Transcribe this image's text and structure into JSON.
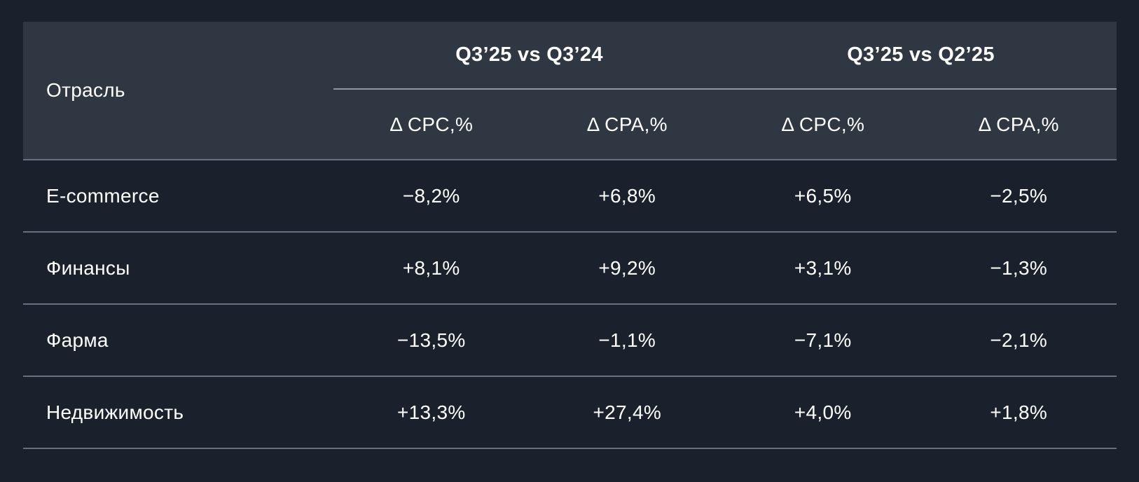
{
  "table": {
    "industry_header": "Отрасль",
    "groups": [
      {
        "label": "Q3’25 vs Q3’24"
      },
      {
        "label": "Q3’25 vs Q2’25"
      }
    ],
    "metric_headers": [
      "Δ CPC,%",
      "Δ CPA,%",
      "Δ CPC,%",
      "Δ CPA,%"
    ],
    "rows": [
      {
        "industry": "E-commerce",
        "values": [
          "−8,2%",
          "+6,8%",
          "+6,5%",
          "−2,5%"
        ]
      },
      {
        "industry": "Финансы",
        "values": [
          "+8,1%",
          "+9,2%",
          "+3,1%",
          "−1,3%"
        ]
      },
      {
        "industry": "Фарма",
        "values": [
          "−13,5%",
          "−1,1%",
          "−7,1%",
          "−2,1%"
        ]
      },
      {
        "industry": "Недвижимость",
        "values": [
          "+13,3%",
          "+27,4%",
          "+4,0%",
          "+1,8%"
        ]
      }
    ],
    "colors": {
      "page_bg": "#1a212c",
      "header_bg": "#2f3743",
      "row_separator": "#67707c",
      "header_underline": "#8f969f",
      "text": "#ffffff"
    }
  },
  "chart_data": {
    "type": "table",
    "title": "",
    "column_groups": [
      "Q3’25 vs Q3’24",
      "Q3’25 vs Q2’25"
    ],
    "columns": [
      "Отрасль",
      "Δ CPC,% (Q3’25 vs Q3’24)",
      "Δ CPA,% (Q3’25 vs Q3’24)",
      "Δ CPC,% (Q3’25 vs Q2’25)",
      "Δ CPA,% (Q3’25 vs Q2’25)"
    ],
    "rows": [
      [
        "E-commerce",
        -8.2,
        6.8,
        6.5,
        -2.5
      ],
      [
        "Финансы",
        8.1,
        9.2,
        3.1,
        -1.3
      ],
      [
        "Фарма",
        -13.5,
        -1.1,
        -7.1,
        -2.1
      ],
      [
        "Недвижимость",
        13.3,
        27.4,
        4.0,
        1.8
      ]
    ],
    "value_unit": "%"
  }
}
